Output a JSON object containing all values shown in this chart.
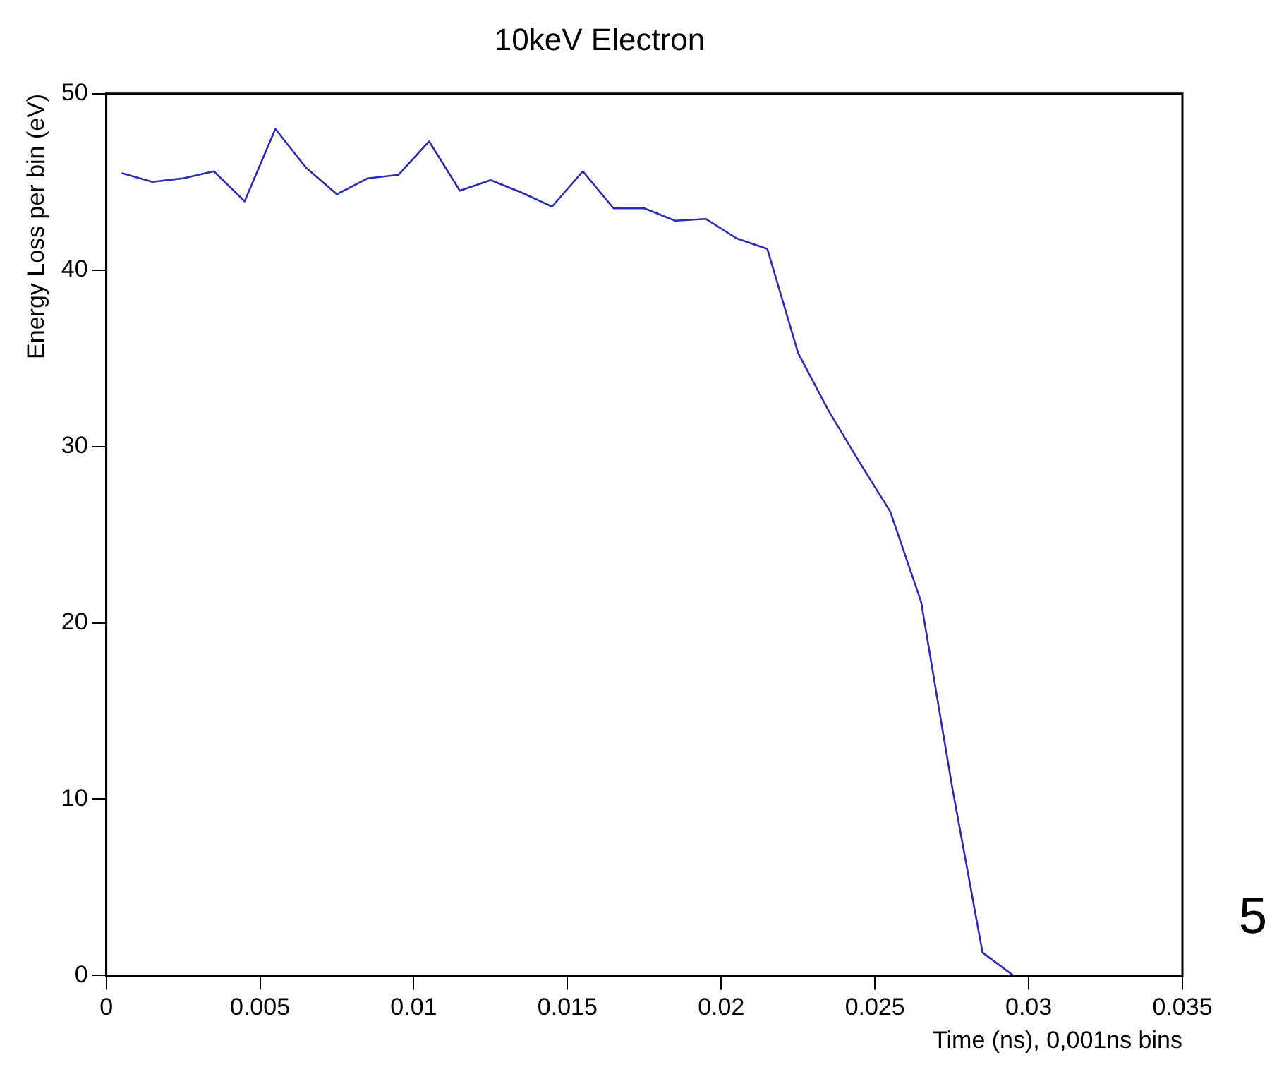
{
  "chart_data": {
    "type": "line",
    "title": "10keV Electron",
    "xlabel": "Time (ns), 0,001ns bins",
    "ylabel": "Energy Loss per bin (eV)",
    "annotations": [
      "5"
    ],
    "x": [
      0.0005,
      0.0015,
      0.0025,
      0.0035,
      0.0045,
      0.0055,
      0.0065,
      0.0075,
      0.0085,
      0.0095,
      0.0105,
      0.0115,
      0.0125,
      0.0135,
      0.0145,
      0.0155,
      0.0165,
      0.0175,
      0.0185,
      0.0195,
      0.0205,
      0.0215,
      0.0225,
      0.0235,
      0.0245,
      0.0255,
      0.0265,
      0.0275,
      0.0285,
      0.0295
    ],
    "series": [
      {
        "color": "#2b2bb8",
        "values": [
          45.5,
          45.0,
          45.2,
          45.6,
          43.9,
          48.0,
          45.8,
          44.3,
          45.2,
          45.4,
          47.3,
          44.5,
          45.1,
          44.4,
          43.6,
          45.6,
          43.5,
          43.5,
          42.8,
          42.9,
          41.8,
          41.2,
          35.3,
          32.0,
          29.1,
          26.3,
          21.2,
          10.8,
          1.3,
          0
        ]
      }
    ],
    "xlim": [
      0,
      0.035
    ],
    "xticks": [
      0,
      0.005,
      0.01,
      0.015,
      0.02,
      0.025,
      0.03,
      0.035
    ],
    "ylim": [
      0,
      50
    ],
    "yticks": [
      0,
      10,
      20,
      30,
      40,
      50
    ],
    "grid": false,
    "legend": false,
    "marker": "none",
    "line_style": "solid"
  }
}
